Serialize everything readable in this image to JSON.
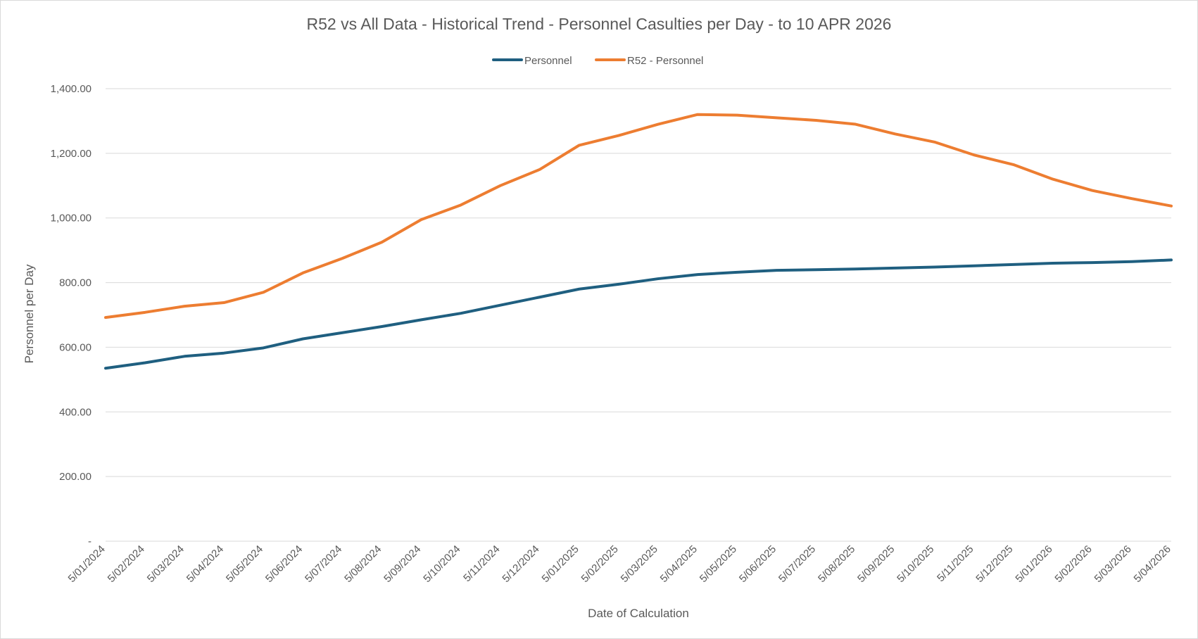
{
  "chart_data": {
    "type": "line",
    "title": "R52 vs All Data - Historical Trend - Personnel Casulties per Day - to 10 APR 2026",
    "xlabel": "Date of Calculation",
    "ylabel": "Personnel per Day",
    "ylim": [
      0,
      1400
    ],
    "y_tick_labels": [
      "-",
      "200.00",
      "400.00",
      "600.00",
      "800.00",
      "1,000.00",
      "1,200.00",
      "1,400.00"
    ],
    "grid": "horizontal",
    "legend_position": "top",
    "categories": [
      "5/01/2024",
      "5/02/2024",
      "5/03/2024",
      "5/04/2024",
      "5/05/2024",
      "5/06/2024",
      "5/07/2024",
      "5/08/2024",
      "5/09/2024",
      "5/10/2024",
      "5/11/2024",
      "5/12/2024",
      "5/01/2025",
      "5/02/2025",
      "5/03/2025",
      "5/04/2025",
      "5/05/2025",
      "5/06/2025",
      "5/07/2025",
      "5/08/2025",
      "5/09/2025",
      "5/10/2025",
      "5/11/2025",
      "5/12/2025",
      "5/01/2026",
      "5/02/2026",
      "5/03/2026",
      "5/04/2026"
    ],
    "series": [
      {
        "name": "Personnel",
        "color": "#1f5f80",
        "values": [
          535,
          552,
          572,
          582,
          598,
          626,
          645,
          664,
          685,
          705,
          730,
          755,
          780,
          795,
          812,
          825,
          832,
          838,
          840,
          842,
          845,
          848,
          852,
          856,
          860,
          862,
          865,
          870
        ]
      },
      {
        "name": "R52 - Personnel",
        "color": "#ed7d31",
        "values": [
          692,
          708,
          727,
          738,
          770,
          830,
          875,
          925,
          995,
          1040,
          1100,
          1150,
          1225,
          1255,
          1290,
          1320,
          1318,
          1310,
          1302,
          1290,
          1260,
          1235,
          1195,
          1165,
          1120,
          1085,
          1060,
          1037
        ]
      }
    ]
  }
}
